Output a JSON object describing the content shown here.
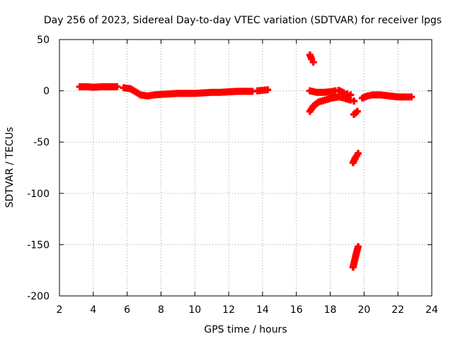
{
  "chart_data": {
    "type": "scatter",
    "title": "Day 256 of 2023, Sidereal Day-to-day VTEC variation (SDTVAR) for receiver lpgs",
    "xlabel": "GPS time / hours",
    "ylabel": "SDTVAR / TECUs",
    "xlim": [
      2,
      24
    ],
    "ylim": [
      -200,
      50
    ],
    "xticks": [
      2,
      4,
      6,
      8,
      10,
      12,
      14,
      16,
      18,
      20,
      22,
      24
    ],
    "yticks": [
      50,
      0,
      -50,
      -100,
      -150,
      -200
    ],
    "grid": true,
    "marker": "plus",
    "series": [
      {
        "name": "SDTVAR",
        "color": "#ff0000",
        "segments": [
          [
            [
              3.2,
              4
            ],
            [
              3.6,
              4
            ],
            [
              4.0,
              3.5
            ],
            [
              4.5,
              4
            ],
            [
              5.0,
              4
            ],
            [
              5.4,
              4
            ]
          ],
          [
            [
              5.8,
              3
            ],
            [
              6.2,
              2
            ],
            [
              6.5,
              -1
            ],
            [
              6.8,
              -4
            ],
            [
              7.2,
              -5
            ],
            [
              7.6,
              -4
            ],
            [
              8.0,
              -3.5
            ],
            [
              8.5,
              -3
            ],
            [
              9.0,
              -2.5
            ],
            [
              9.5,
              -2.5
            ],
            [
              10.0,
              -2.5
            ],
            [
              10.5,
              -2
            ],
            [
              11.0,
              -1.5
            ],
            [
              11.5,
              -1.5
            ],
            [
              12.0,
              -1
            ],
            [
              12.5,
              -0.5
            ],
            [
              13.0,
              -0.5
            ],
            [
              13.4,
              -0.5
            ]
          ],
          [
            [
              13.7,
              0
            ],
            [
              14.0,
              0.5
            ],
            [
              14.3,
              1
            ]
          ],
          [
            [
              16.8,
              35
            ],
            [
              16.9,
              31
            ],
            [
              17.0,
              28
            ]
          ],
          [
            [
              16.8,
              0
            ],
            [
              17.2,
              -1.5
            ],
            [
              17.6,
              -1.5
            ],
            [
              18.0,
              -1
            ],
            [
              18.3,
              0
            ],
            [
              18.5,
              0.5
            ],
            [
              18.8,
              -2
            ],
            [
              19.0,
              -3
            ],
            [
              19.2,
              -4
            ]
          ],
          [
            [
              16.8,
              -20
            ],
            [
              17.0,
              -15
            ],
            [
              17.3,
              -11
            ],
            [
              17.7,
              -9
            ],
            [
              18.1,
              -7
            ],
            [
              18.5,
              -6
            ],
            [
              18.8,
              -7
            ],
            [
              19.2,
              -9
            ],
            [
              19.4,
              -10
            ]
          ],
          [
            [
              19.4,
              -23
            ],
            [
              19.6,
              -20
            ]
          ],
          [
            [
              19.35,
              -70
            ],
            [
              19.5,
              -65
            ],
            [
              19.65,
              -61
            ]
          ],
          [
            [
              19.35,
              -172
            ],
            [
              19.45,
              -165
            ],
            [
              19.55,
              -158
            ],
            [
              19.65,
              -152
            ]
          ],
          [
            [
              19.9,
              -7
            ],
            [
              20.2,
              -5
            ],
            [
              20.5,
              -4
            ],
            [
              21.0,
              -4
            ],
            [
              21.5,
              -5
            ],
            [
              22.0,
              -6
            ],
            [
              22.5,
              -6
            ],
            [
              22.8,
              -6
            ]
          ]
        ]
      }
    ]
  }
}
